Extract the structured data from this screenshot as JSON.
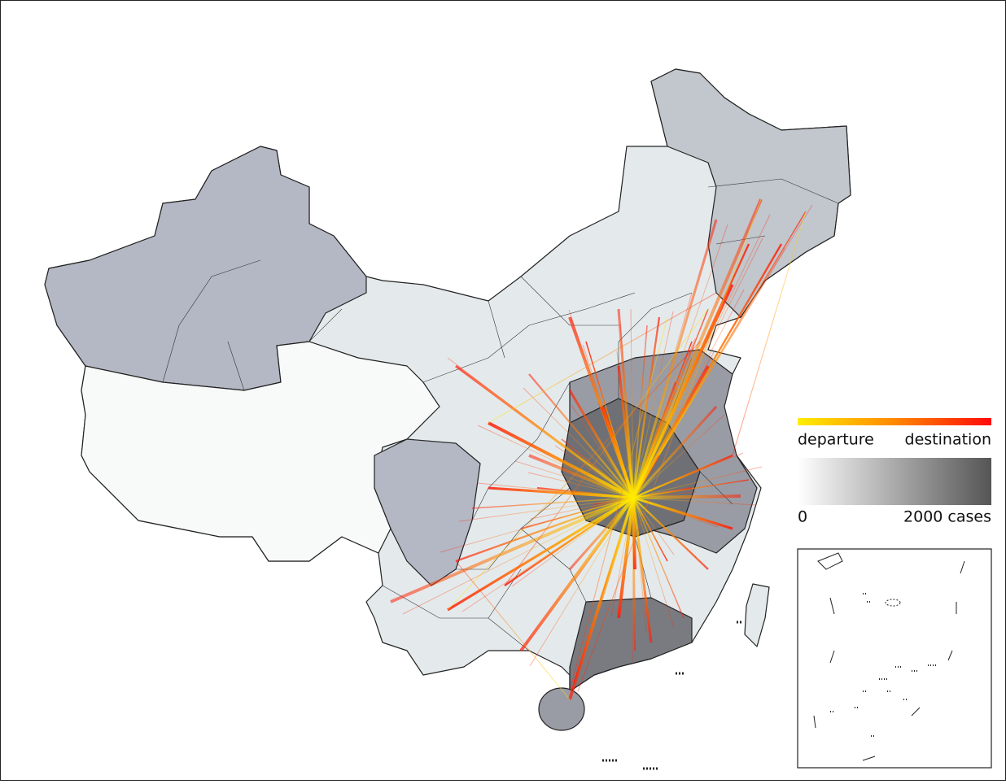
{
  "legend": {
    "flow_start": "departure",
    "flow_end": "destination",
    "cases_min": "0",
    "cases_max": "2000 cases"
  }
}
